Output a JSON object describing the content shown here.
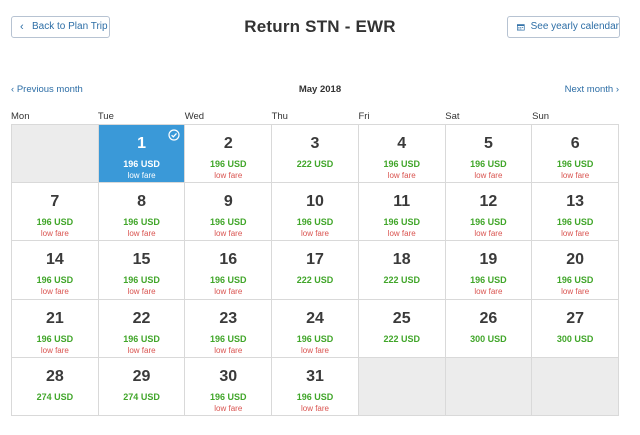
{
  "header": {
    "back_label": "Back to Plan Trip",
    "title": "Return STN - EWR",
    "calendar_label": "See yearly calendar"
  },
  "month_nav": {
    "prev_label": "Previous month",
    "month": "May 2018",
    "next_label": "Next month"
  },
  "weekdays": [
    "Mon",
    "Tue",
    "Wed",
    "Thu",
    "Fri",
    "Sat",
    "Sun"
  ],
  "colors": {
    "accent": "#3a99d8",
    "price_green": "#41a62a",
    "low_fare_red": "#d9534f",
    "link_blue": "#2d6ea6"
  },
  "calendar": {
    "leading_empty": 1,
    "trailing_empty": 3,
    "selected_day": "1",
    "days": [
      {
        "day": "1",
        "price": "196 USD",
        "tag": "low fare"
      },
      {
        "day": "2",
        "price": "196 USD",
        "tag": "low fare"
      },
      {
        "day": "3",
        "price": "222 USD",
        "tag": ""
      },
      {
        "day": "4",
        "price": "196 USD",
        "tag": "low fare"
      },
      {
        "day": "5",
        "price": "196 USD",
        "tag": "low fare"
      },
      {
        "day": "6",
        "price": "196 USD",
        "tag": "low fare"
      },
      {
        "day": "7",
        "price": "196 USD",
        "tag": "low fare"
      },
      {
        "day": "8",
        "price": "196 USD",
        "tag": "low fare"
      },
      {
        "day": "9",
        "price": "196 USD",
        "tag": "low fare"
      },
      {
        "day": "10",
        "price": "196 USD",
        "tag": "low fare"
      },
      {
        "day": "11",
        "price": "196 USD",
        "tag": "low fare"
      },
      {
        "day": "12",
        "price": "196 USD",
        "tag": "low fare"
      },
      {
        "day": "13",
        "price": "196 USD",
        "tag": "low fare"
      },
      {
        "day": "14",
        "price": "196 USD",
        "tag": "low fare"
      },
      {
        "day": "15",
        "price": "196 USD",
        "tag": "low fare"
      },
      {
        "day": "16",
        "price": "196 USD",
        "tag": "low fare"
      },
      {
        "day": "17",
        "price": "222 USD",
        "tag": ""
      },
      {
        "day": "18",
        "price": "222 USD",
        "tag": ""
      },
      {
        "day": "19",
        "price": "196 USD",
        "tag": "low fare"
      },
      {
        "day": "20",
        "price": "196 USD",
        "tag": "low fare"
      },
      {
        "day": "21",
        "price": "196 USD",
        "tag": "low fare"
      },
      {
        "day": "22",
        "price": "196 USD",
        "tag": "low fare"
      },
      {
        "day": "23",
        "price": "196 USD",
        "tag": "low fare"
      },
      {
        "day": "24",
        "price": "196 USD",
        "tag": "low fare"
      },
      {
        "day": "25",
        "price": "222 USD",
        "tag": ""
      },
      {
        "day": "26",
        "price": "300 USD",
        "tag": ""
      },
      {
        "day": "27",
        "price": "300 USD",
        "tag": ""
      },
      {
        "day": "28",
        "price": "274 USD",
        "tag": ""
      },
      {
        "day": "29",
        "price": "274 USD",
        "tag": ""
      },
      {
        "day": "30",
        "price": "196 USD",
        "tag": "low fare"
      },
      {
        "day": "31",
        "price": "196 USD",
        "tag": "low fare"
      }
    ]
  }
}
